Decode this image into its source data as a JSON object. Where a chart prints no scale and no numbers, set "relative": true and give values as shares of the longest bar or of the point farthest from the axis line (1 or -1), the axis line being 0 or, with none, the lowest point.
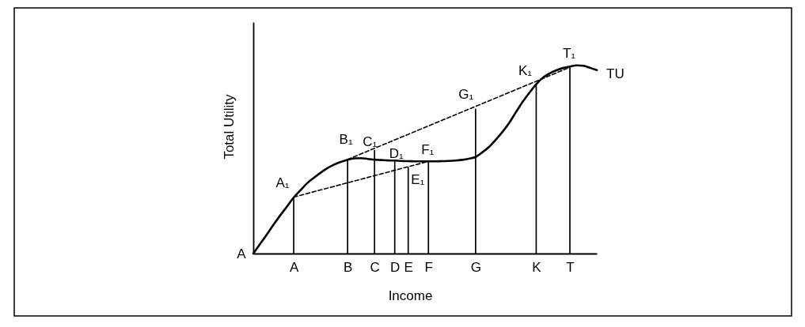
{
  "chart_data": {
    "type": "line",
    "xlabel": "Income",
    "ylabel": "Total Utility",
    "relative": true,
    "categories": [
      null,
      null,
      null,
      null,
      null,
      null,
      "A",
      null,
      null,
      null,
      null,
      null,
      null,
      null,
      "B",
      null,
      null,
      null,
      "C",
      null,
      null,
      "D",
      null,
      "E",
      null,
      null,
      "F",
      null,
      null,
      null,
      null,
      null,
      null,
      "G",
      null,
      null,
      null,
      null,
      null,
      null,
      null,
      null,
      "K",
      null,
      null,
      null,
      null,
      "T",
      null,
      null,
      null,
      null
    ],
    "series": [
      {
        "name": "TU",
        "color": "#000000",
        "values": [
          0,
          0.05,
          0.101,
          0.153,
          0.203,
          0.25,
          0.298,
          0.336,
          0.374,
          0.403,
          0.43,
          0.454,
          0.473,
          0.487,
          0.499,
          0.506,
          0.507,
          0.503,
          0.499,
          0.497,
          0.495,
          0.494,
          0.492,
          0.491,
          0.49,
          0.49,
          0.49,
          0.49,
          0.491,
          0.492,
          0.494,
          0.498,
          0.504,
          0.513,
          0.538,
          0.567,
          0.605,
          0.647,
          0.695,
          0.752,
          0.807,
          0.855,
          0.9,
          0.935,
          0.958,
          0.974,
          0.986,
          0.994,
          1,
          0.998,
          0.987,
          0.975
        ]
      },
      {
        "color": "#000000",
        "line_style": "dashed",
        "x": [
          "B",
          "T"
        ],
        "values": [
          0.5,
          0.99
        ]
      },
      {
        "color": "#000000",
        "line_style": "dashed",
        "x": [
          "A",
          "F"
        ],
        "values": [
          0.3,
          0.49
        ]
      },
      {
        "type": "bar",
        "color": "#000000",
        "x": [
          "A",
          "B",
          "C",
          "D",
          "E",
          "F",
          "G",
          "K",
          "T"
        ],
        "values": [
          0.3,
          0.5,
          0.55,
          0.49,
          0.46,
          0.49,
          0.77,
          0.9,
          0.99
        ]
      }
    ],
    "annotations": [
      "A",
      {
        "text": "A₁",
        "x": "A",
        "y": 0.3
      },
      {
        "text": "B₁",
        "x": "B",
        "y": 0.5
      },
      {
        "text": "C₁",
        "x": "C",
        "y": 0.55
      },
      {
        "text": "D₁",
        "x": "D",
        "y": 0.49
      },
      {
        "text": "E₁",
        "x": "E",
        "y": 0.46
      },
      {
        "text": "F₁",
        "x": "F",
        "y": 0.49
      },
      {
        "text": "G₁",
        "x": "G",
        "y": 0.77
      },
      {
        "text": "K₁",
        "x": "K",
        "y": 0.9
      },
      {
        "text": "T₁",
        "x": "T",
        "y": 0.99
      }
    ]
  }
}
